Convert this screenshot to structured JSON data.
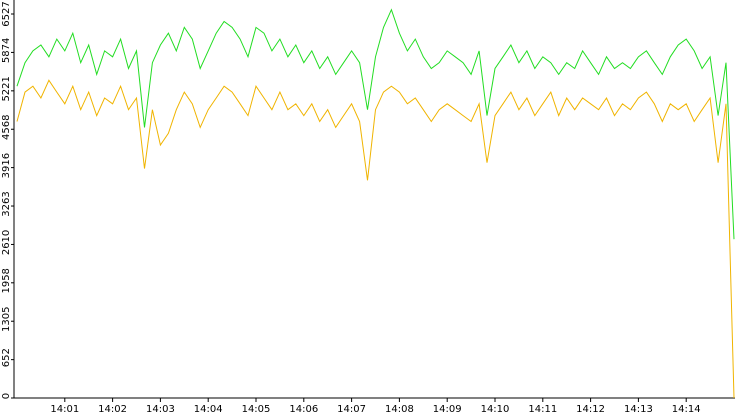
{
  "chart_data": {
    "type": "line",
    "categories": [
      null,
      null,
      null,
      null,
      null,
      null,
      "14:01",
      null,
      null,
      null,
      null,
      null,
      "14:02",
      null,
      null,
      null,
      null,
      null,
      "14:03",
      null,
      null,
      null,
      null,
      null,
      "14:04",
      null,
      null,
      null,
      null,
      null,
      "14:05",
      null,
      null,
      null,
      null,
      null,
      "14:06",
      null,
      null,
      null,
      null,
      null,
      "14:07",
      null,
      null,
      null,
      null,
      null,
      "14:08",
      null,
      null,
      null,
      null,
      null,
      "14:09",
      null,
      null,
      null,
      null,
      null,
      "14:10",
      null,
      null,
      null,
      null,
      null,
      "14:11",
      null,
      null,
      null,
      null,
      null,
      "14:12",
      null,
      null,
      null,
      null,
      null,
      "14:13",
      null,
      null,
      null,
      null,
      null,
      "14:14",
      null,
      null,
      null,
      null,
      null,
      null
    ],
    "series": [
      {
        "color": "#22dd22",
        "values": [
          5300,
          5700,
          5900,
          6000,
          5800,
          6100,
          5900,
          6200,
          5700,
          6000,
          5500,
          5900,
          5800,
          6100,
          5600,
          5900,
          4600,
          5700,
          6000,
          6200,
          5900,
          6300,
          6100,
          5600,
          5900,
          6200,
          6400,
          6300,
          6100,
          5800,
          6300,
          6200,
          5900,
          6100,
          5800,
          6000,
          5700,
          5900,
          5600,
          5800,
          5500,
          5700,
          5900,
          5700,
          4900,
          5800,
          6300,
          6600,
          6200,
          5900,
          6100,
          5800,
          5600,
          5700,
          5900,
          5800,
          5700,
          5500,
          5900,
          4800,
          5600,
          5800,
          6000,
          5700,
          5900,
          5600,
          5800,
          5700,
          5500,
          5700,
          5600,
          5900,
          5700,
          5500,
          5800,
          5600,
          5700,
          5600,
          5800,
          5900,
          5700,
          5500,
          5800,
          6000,
          6100,
          5900,
          5600,
          5800,
          4800,
          5700,
          2700
        ]
      },
      {
        "color": "#f0b400",
        "values": [
          4700,
          5200,
          5300,
          5100,
          5400,
          5200,
          5000,
          5300,
          4900,
          5200,
          4800,
          5100,
          5000,
          5300,
          4900,
          5100,
          3900,
          4900,
          4300,
          4500,
          4900,
          5200,
          5000,
          4600,
          4900,
          5100,
          5300,
          5200,
          5000,
          4800,
          5300,
          5100,
          4900,
          5200,
          4900,
          5000,
          4800,
          5000,
          4700,
          4900,
          4600,
          4800,
          5000,
          4700,
          3700,
          4900,
          5200,
          5300,
          5200,
          5000,
          5100,
          4900,
          4700,
          4900,
          5000,
          4900,
          4800,
          4700,
          5000,
          4000,
          4800,
          5000,
          5200,
          4900,
          5100,
          4800,
          5000,
          5200,
          4800,
          5100,
          4900,
          5100,
          5000,
          4900,
          5100,
          4800,
          5000,
          4900,
          5100,
          5200,
          5000,
          4700,
          5000,
          4900,
          5000,
          4700,
          4900,
          5100,
          4000,
          5000,
          0
        ]
      }
    ],
    "ylim": [
      0,
      6765
    ],
    "yticks": [
      0,
      652,
      1305,
      1958,
      2610,
      3263,
      3916,
      4568,
      5221,
      5874,
      6527
    ]
  }
}
